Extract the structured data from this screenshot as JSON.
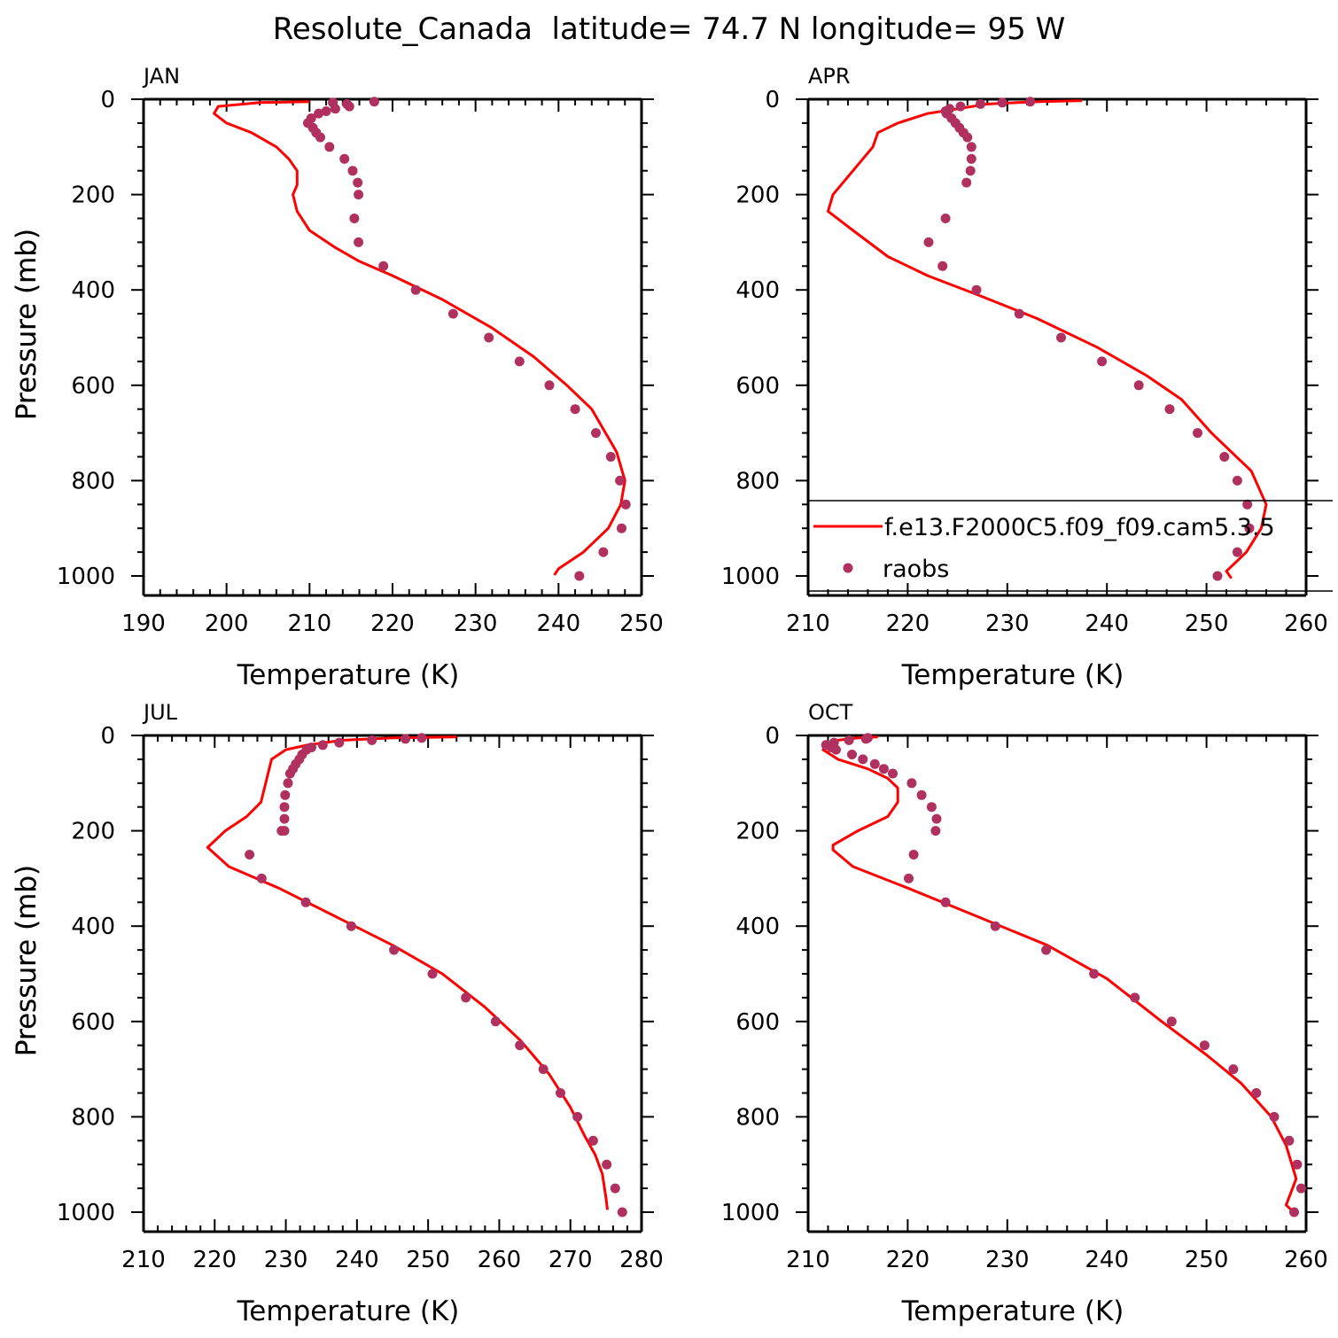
{
  "colors": {
    "model_line": "#ff0000",
    "raobs_marker": "#b03060",
    "axis": "#000000"
  },
  "chart_data": {
    "type": "line",
    "title": "Resolute_Canada  latitude= 74.7 N longitude= 95 W",
    "legend": {
      "placement": "inside APR panel, lower area",
      "entries": [
        {
          "label": "f.e13.F2000C5.f09_f09.cam5.3.5",
          "style": "line"
        },
        {
          "label": "raobs",
          "style": "marker"
        }
      ]
    },
    "panels": [
      {
        "label": "JAN",
        "xlabel": "Temperature (K)",
        "ylabel": "Pressure (mb)",
        "xlim": [
          190,
          250
        ],
        "ylim": [
          1000,
          0
        ],
        "xticks": [
          190,
          200,
          210,
          220,
          230,
          240,
          250
        ],
        "yticks": [
          0,
          200,
          400,
          600,
          800,
          1000
        ],
        "series": [
          {
            "name": "f.e13.F2000C5.f09_f09.cam5.3.5",
            "kind": "line",
            "x": [
              210,
              204,
              199,
              198.5,
              200,
              203,
              206,
              207.5,
              208.5,
              208.5,
              208,
              208.5,
              210,
              213,
              216,
              220,
              226,
              232,
              237,
              241,
              244,
              247,
              248,
              247.5,
              246,
              243,
              240,
              239.5
            ],
            "y": [
              5,
              7,
              15,
              30,
              50,
              70,
              100,
              125,
              150,
              180,
              200,
              235,
              275,
              310,
              340,
              370,
              420,
              480,
              540,
              600,
              650,
              740,
              800,
              850,
              900,
              950,
              985,
              998
            ]
          },
          {
            "name": "raobs",
            "kind": "scatter",
            "x": [
              217.8,
              212.8,
              214.5,
              214.8,
              213.1,
              212.0,
              211.1,
              210.2,
              209.8,
              210.4,
              210.8,
              211.3,
              212.4,
              214.2,
              215.2,
              215.8,
              215.9,
              215.4,
              215.9,
              218.9,
              222.8,
              227.3,
              231.6,
              235.3,
              238.9,
              242.0,
              244.5,
              246.3,
              247.4,
              248.1,
              247.6,
              245.4,
              242.5
            ],
            "y": [
              5,
              7,
              10,
              15,
              20,
              25,
              30,
              40,
              50,
              60,
              70,
              80,
              100,
              125,
              150,
              175,
              200,
              250,
              300,
              350,
              400,
              450,
              500,
              550,
              600,
              650,
              700,
              750,
              800,
              850,
              900,
              950,
              1000
            ]
          }
        ]
      },
      {
        "label": "APR",
        "xlabel": "Temperature (K)",
        "ylabel": "Pressure (mb)",
        "xlim": [
          210,
          260
        ],
        "ylim": [
          1000,
          0
        ],
        "xticks": [
          210,
          220,
          230,
          240,
          250,
          260
        ],
        "yticks": [
          0,
          200,
          400,
          600,
          800,
          1000
        ],
        "series": [
          {
            "name": "f.e13.F2000C5.f09_f09.cam5.3.5",
            "kind": "line",
            "x": [
              237.5,
              233,
              228,
              225,
              222,
              219,
              217,
              216.5,
              215.5,
              214.5,
              212.5,
              212,
              214.5,
              218,
              222,
              227,
              233,
              239,
              244,
              247.5,
              250.5,
              254.5,
              256,
              255.5,
              254,
              252,
              252.5
            ],
            "y": [
              3,
              5,
              10,
              20,
              30,
              50,
              70,
              100,
              125,
              150,
              200,
              235,
              275,
              330,
              370,
              410,
              460,
              520,
              580,
              630,
              700,
              780,
              850,
              900,
              950,
              990,
              1005
            ]
          },
          {
            "name": "raobs",
            "kind": "scatter",
            "x": [
              232.3,
              229.5,
              227.3,
              225.3,
              224.2,
              223.8,
              223.9,
              224.4,
              224.8,
              225.2,
              225.6,
              226.0,
              226.4,
              226.4,
              226.3,
              225.9,
              223.8,
              222.1,
              223.5,
              226.9,
              231.2,
              235.4,
              239.5,
              243.2,
              246.3,
              249.1,
              251.8,
              253.1,
              254.1,
              254.3,
              253.1,
              251.1
            ],
            "y": [
              5,
              7,
              10,
              15,
              20,
              25,
              30,
              40,
              50,
              60,
              70,
              80,
              100,
              125,
              150,
              175,
              250,
              300,
              350,
              400,
              450,
              500,
              550,
              600,
              650,
              700,
              750,
              800,
              850,
              900,
              950,
              1000
            ]
          }
        ]
      },
      {
        "label": "JUL",
        "xlabel": "Temperature (K)",
        "ylabel": "Pressure (mb)",
        "xlim": [
          210,
          280
        ],
        "ylim": [
          1000,
          0
        ],
        "xticks": [
          210,
          220,
          230,
          240,
          250,
          260,
          270,
          280
        ],
        "yticks": [
          0,
          200,
          400,
          600,
          800,
          1000
        ],
        "series": [
          {
            "name": "f.e13.F2000C5.f09_f09.cam5.3.5",
            "kind": "line",
            "x": [
              254,
              245,
              238,
              233,
              230,
              228,
              227.5,
              227,
              226.5,
              224.5,
              221.5,
              219,
              222,
              229,
              237,
              245,
              252,
              258,
              263,
              267,
              270,
              272,
              273.5,
              274.5,
              275,
              275.2
            ],
            "y": [
              3,
              5,
              10,
              20,
              30,
              50,
              80,
              110,
              140,
              170,
              200,
              235,
              275,
              320,
              380,
              440,
              500,
              570,
              640,
              710,
              780,
              840,
              880,
              920,
              970,
              995
            ]
          },
          {
            "name": "raobs",
            "kind": "scatter",
            "x": [
              249.1,
              246.8,
              242.1,
              237.5,
              235.2,
              233.6,
              232.9,
              232.3,
              231.9,
              231.4,
              231.0,
              230.6,
              230.3,
              229.9,
              229.8,
              229.8,
              229.8,
              229.4,
              224.9,
              226.6,
              232.8,
              239.2,
              245.2,
              250.6,
              255.3,
              259.5,
              262.9,
              266.2,
              268.6,
              271.0,
              273.2,
              275.1,
              276.3,
              277.3
            ],
            "y": [
              5,
              7,
              10,
              15,
              20,
              25,
              30,
              40,
              50,
              60,
              70,
              80,
              100,
              125,
              150,
              175,
              200,
              200,
              250,
              300,
              350,
              400,
              450,
              500,
              550,
              600,
              650,
              700,
              750,
              800,
              850,
              900,
              950,
              1000
            ]
          }
        ]
      },
      {
        "label": "OCT",
        "xlabel": "Temperature (K)",
        "ylabel": "Pressure (mb)",
        "xlim": [
          210,
          260
        ],
        "ylim": [
          1000,
          0
        ],
        "xticks": [
          210,
          220,
          230,
          240,
          250,
          260
        ],
        "yticks": [
          0,
          200,
          400,
          600,
          800,
          1000
        ],
        "series": [
          {
            "name": "f.e13.F2000C5.f09_f09.cam5.3.5",
            "kind": "line",
            "x": [
              217,
              215,
              213,
              212,
              211.5,
              213,
              216,
              218,
              219,
              219,
              218,
              215,
              212.5,
              212.5,
              214.5,
              220,
              227,
              234,
              240,
              245.5,
              250,
              253.5,
              256.5,
              258,
              259,
              258,
              258.5
            ],
            "y": [
              3,
              5,
              10,
              20,
              30,
              50,
              70,
              90,
              110,
              140,
              170,
              200,
              230,
              240,
              275,
              320,
              380,
              440,
              510,
              600,
              670,
              730,
              800,
              860,
              930,
              985,
              995
            ]
          },
          {
            "name": "raobs",
            "kind": "scatter",
            "x": [
              216.0,
              215.8,
              214.1,
              212.6,
              211.8,
              212.3,
              212.8,
              214.4,
              215.5,
              216.7,
              217.6,
              218.5,
              220.4,
              221.4,
              222.4,
              222.9,
              222.8,
              220.6,
              220.1,
              223.8,
              228.8,
              233.9,
              238.7,
              242.8,
              246.5,
              249.8,
              252.7,
              255.0,
              256.8,
              258.3,
              259.1,
              259.5,
              258.8
            ],
            "y": [
              5,
              7,
              10,
              15,
              20,
              25,
              30,
              40,
              50,
              60,
              70,
              80,
              100,
              125,
              150,
              175,
              200,
              250,
              300,
              350,
              400,
              450,
              500,
              550,
              600,
              650,
              700,
              750,
              800,
              850,
              900,
              950,
              1000
            ]
          }
        ]
      }
    ]
  }
}
